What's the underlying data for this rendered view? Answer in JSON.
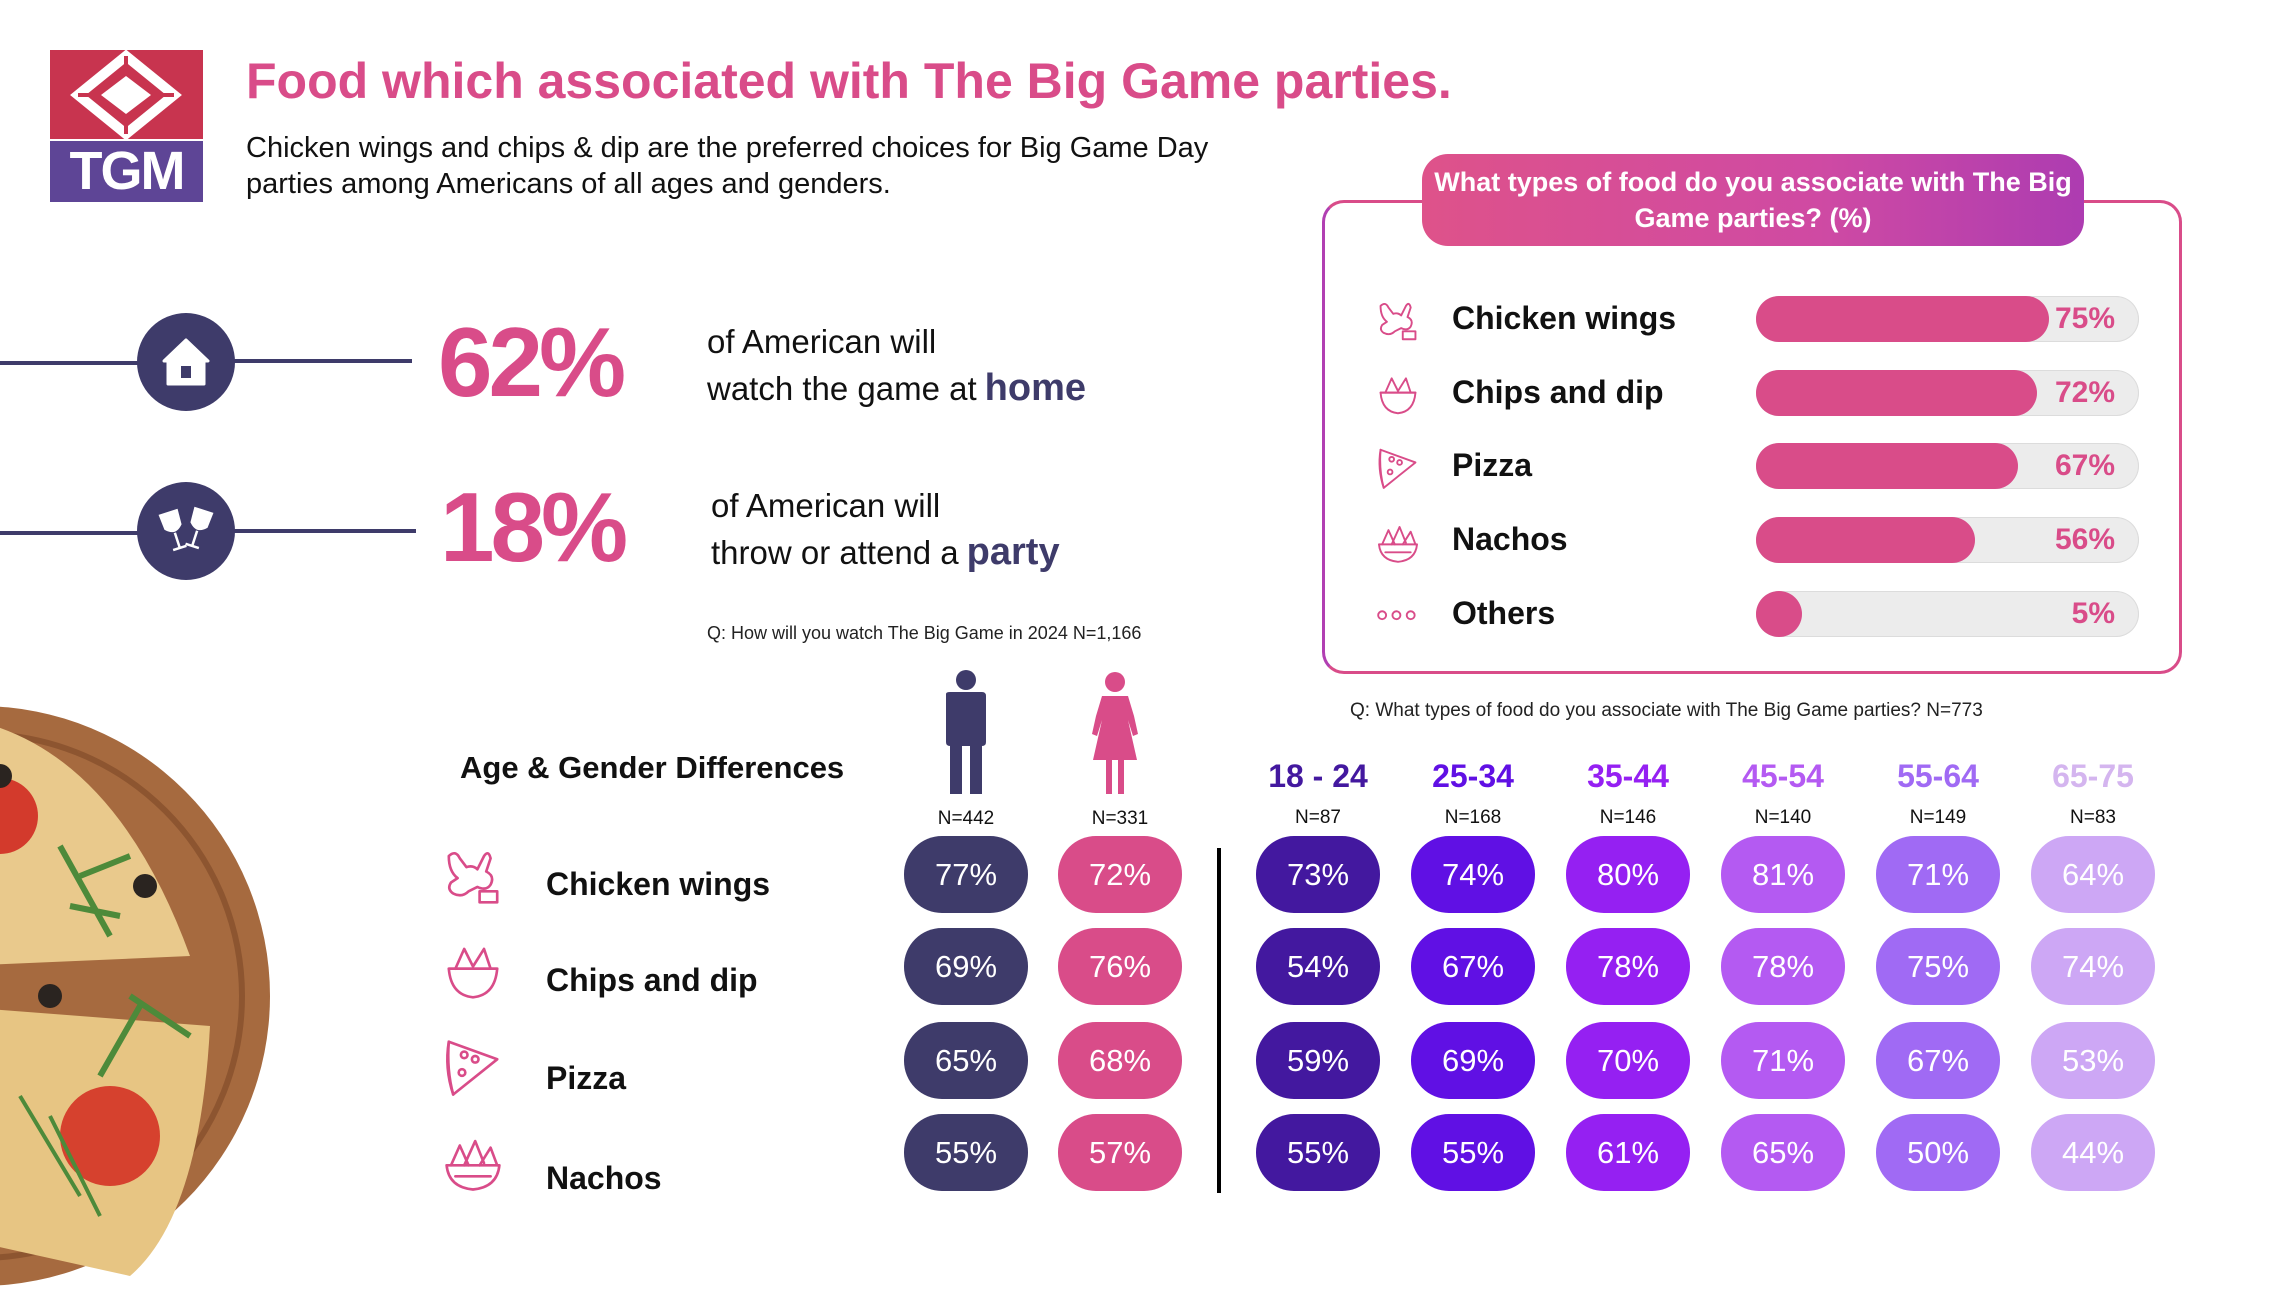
{
  "logo": {
    "text": "TGM",
    "colors": {
      "top": "#c8344f",
      "bottom": "#5e4596"
    }
  },
  "header": {
    "title": "Food which associated with The Big Game parties.",
    "subtitle": "Chicken wings and chips & dip are the preferred choices for Big Game Day parties among Americans of all ages and genders."
  },
  "stats": [
    {
      "icon": "home-icon",
      "value": "62%",
      "line1": "of American will",
      "line2": "watch the game at",
      "highlight": "home"
    },
    {
      "icon": "wine-glasses-toast-icon",
      "value": "18%",
      "line1": "of American will",
      "line2": "throw or attend a",
      "highlight": "party"
    }
  ],
  "stats_note": "Q: How will you watch The Big Game in 2024 N=1,166",
  "colors": {
    "pink": "#d94c89",
    "navy": "#3e3b6a",
    "age": [
      "#43189f",
      "#6010e4",
      "#9520f2",
      "#b45af2",
      "#a06af4",
      "#cda7f5"
    ],
    "age_header": [
      "#43189f",
      "#6010e4",
      "#9520f2",
      "#b45af2",
      "#a06af4",
      "#d4b5ef"
    ]
  },
  "chart_data": [
    {
      "type": "bar",
      "orientation": "horizontal",
      "title": "What types of food do you associate with The Big Game parties? (%)",
      "categories": [
        "Chicken wings",
        "Chips and dip",
        "Pizza",
        "Nachos",
        "Others"
      ],
      "icons": [
        "chicken-wings-icon",
        "chips-and-dip-icon",
        "pizza-slice-icon",
        "nachos-icon",
        "more-dots-icon"
      ],
      "values": [
        75,
        72,
        67,
        56,
        5
      ],
      "labels": [
        "75%",
        "72%",
        "67%",
        "56%",
        "5%"
      ],
      "xlim": [
        0,
        100
      ],
      "note": "Q: What types of food do you associate with The Big Game parties? N=773"
    },
    {
      "type": "table",
      "title": "Age & Gender Differences",
      "rows": [
        "Chicken wings",
        "Chips and dip",
        "Pizza",
        "Nachos"
      ],
      "row_icons": [
        "chicken-wings-icon",
        "chips-and-dip-icon",
        "pizza-slice-icon",
        "nachos-icon"
      ],
      "gender": [
        {
          "name": "Male",
          "icon": "male-figure-icon",
          "n": "N=442",
          "values": [
            "77%",
            "69%",
            "65%",
            "55%"
          ]
        },
        {
          "name": "Female",
          "icon": "female-figure-icon",
          "n": "N=331",
          "values": [
            "72%",
            "76%",
            "68%",
            "57%"
          ]
        }
      ],
      "age": [
        {
          "name": "18 - 24",
          "n": "N=87",
          "values": [
            "73%",
            "54%",
            "59%",
            "55%"
          ]
        },
        {
          "name": "25-34",
          "n": "N=168",
          "values": [
            "74%",
            "67%",
            "69%",
            "55%"
          ]
        },
        {
          "name": "35-44",
          "n": "N=146",
          "values": [
            "80%",
            "78%",
            "70%",
            "61%"
          ]
        },
        {
          "name": "45-54",
          "n": "N=140",
          "values": [
            "81%",
            "78%",
            "71%",
            "65%"
          ]
        },
        {
          "name": "55-64",
          "n": "N=149",
          "values": [
            "71%",
            "75%",
            "67%",
            "50%"
          ]
        },
        {
          "name": "65-75",
          "n": "N=83",
          "values": [
            "64%",
            "74%",
            "53%",
            "44%"
          ]
        }
      ]
    }
  ]
}
